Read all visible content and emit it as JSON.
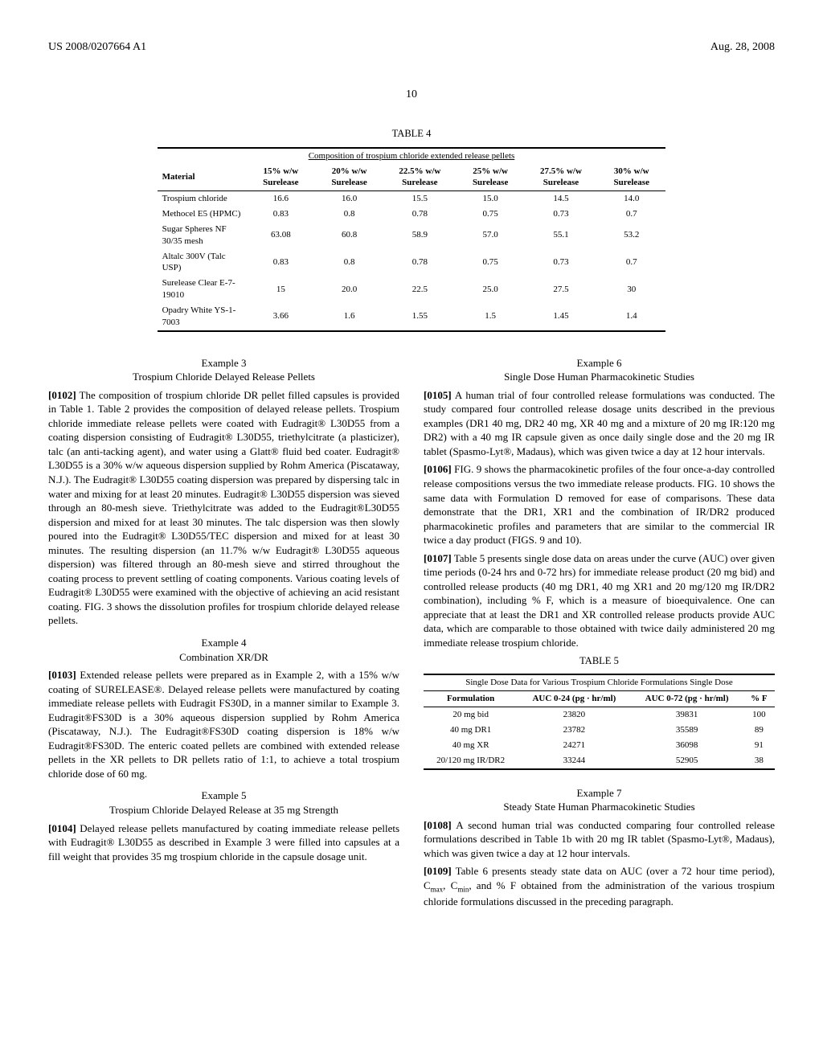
{
  "header": {
    "left": "US 2008/0207664 A1",
    "right": "Aug. 28, 2008"
  },
  "page_number": "10",
  "table4": {
    "caption": "TABLE 4",
    "subcaption": "Composition of trospium chloride extended release pellets",
    "columns": [
      "Material",
      "15% w/w Surelease",
      "20% w/w Surelease",
      "22.5% w/w Surelease",
      "25% w/w Surelease",
      "27.5% w/w Surelease",
      "30% w/w Surelease"
    ],
    "rows": [
      [
        "Trospium chloride",
        "16.6",
        "16.0",
        "15.5",
        "15.0",
        "14.5",
        "14.0"
      ],
      [
        "Methocel E5 (HPMC)",
        "0.83",
        "0.8",
        "0.78",
        "0.75",
        "0.73",
        "0.7"
      ],
      [
        "Sugar Spheres NF 30/35 mesh",
        "63.08",
        "60.8",
        "58.9",
        "57.0",
        "55.1",
        "53.2"
      ],
      [
        "Altalc 300V (Talc USP)",
        "0.83",
        "0.8",
        "0.78",
        "0.75",
        "0.73",
        "0.7"
      ],
      [
        "Surelease Clear E-7-19010",
        "15",
        "20.0",
        "22.5",
        "25.0",
        "27.5",
        "30"
      ],
      [
        "Opadry White YS-1-7003",
        "3.66",
        "1.6",
        "1.55",
        "1.5",
        "1.45",
        "1.4"
      ]
    ]
  },
  "example3": {
    "label": "Example 3",
    "title": "Trospium Chloride Delayed Release Pellets",
    "para_num": "[0102]",
    "text": "The composition of trospium chloride DR pellet filled capsules is provided in Table 1. Table 2 provides the composition of delayed release pellets. Trospium chloride immediate release pellets were coated with Eudragit® L30D55 from a coating dispersion consisting of Eudragit® L30D55, triethylcitrate (a plasticizer), talc (an anti-tacking agent), and water using a Glatt® fluid bed coater. Eudragit® L30D55 is a 30% w/w aqueous dispersion supplied by Rohm America (Piscataway, N.J.). The Eudragit® L30D55 coating dispersion was prepared by dispersing talc in water and mixing for at least 20 minutes. Eudragit® L30D55 dispersion was sieved through an 80-mesh sieve. Triethylcitrate was added to the Eudragit®L30D55 dispersion and mixed for at least 30 minutes. The talc dispersion was then slowly poured into the Eudragit® L30D55/TEC dispersion and mixed for at least 30 minutes. The resulting dispersion (an 11.7% w/w Eudragit® L30D55 aqueous dispersion) was filtered through an 80-mesh sieve and stirred throughout the coating process to prevent settling of coating components. Various coating levels of Eudragit® L30D55 were examined with the objective of achieving an acid resistant coating. FIG. 3 shows the dissolution profiles for trospium chloride delayed release pellets."
  },
  "example4": {
    "label": "Example 4",
    "title": "Combination XR/DR",
    "para_num": "[0103]",
    "text": "Extended release pellets were prepared as in Example 2, with a 15% w/w coating of SURELEASE®. Delayed release pellets were manufactured by coating immediate release pellets with Eudragit FS30D, in a manner similar to Example 3. Eudragit®FS30D is a 30% aqueous dispersion supplied by Rohm America (Piscataway, N.J.). The Eudragit®FS30D coating dispersion is 18% w/w Eudragit®FS30D. The enteric coated pellets are combined with extended release pellets in the XR pellets to DR pellets ratio of 1:1, to achieve a total trospium chloride dose of 60 mg."
  },
  "example5": {
    "label": "Example 5",
    "title": "Trospium Chloride Delayed Release at 35 mg Strength",
    "para_num": "[0104]",
    "text": "Delayed release pellets manufactured by coating immediate release pellets with Eudragit® L30D55 as described in Example 3 were filled into capsules at a fill weight that provides 35 mg trospium chloride in the capsule dosage unit."
  },
  "example6": {
    "label": "Example 6",
    "title": "Single Dose Human Pharmacokinetic Studies",
    "p1_num": "[0105]",
    "p1": "A human trial of four controlled release formulations was conducted. The study compared four controlled release dosage units described in the previous examples (DR1 40 mg, DR2 40 mg, XR 40 mg and a mixture of 20 mg IR:120 mg DR2) with a 40 mg IR capsule given as once daily single dose and the 20 mg IR tablet (Spasmo-Lyt®, Madaus), which was given twice a day at 12 hour intervals.",
    "p2_num": "[0106]",
    "p2": "FIG. 9 shows the pharmacokinetic profiles of the four once-a-day controlled release compositions versus the two immediate release products. FIG. 10 shows the same data with Formulation D removed for ease of comparisons. These data demonstrate that the DR1, XR1 and the combination of IR/DR2 produced pharmacokinetic profiles and parameters that are similar to the commercial IR twice a day product (FIGS. 9 and 10).",
    "p3_num": "[0107]",
    "p3": "Table 5 presents single dose data on areas under the curve (AUC) over given time periods (0-24 hrs and 0-72 hrs) for immediate release product (20 mg bid) and controlled release products (40 mg DR1, 40 mg XR1 and 20 mg/120 mg IR/DR2 combination), including % F, which is a measure of bioequivalence. One can appreciate that at least the DR1 and XR controlled release products provide AUC data, which are comparable to those obtained with twice daily administered 20 mg immediate release trospium chloride."
  },
  "table5": {
    "caption": "TABLE 5",
    "subcaption": "Single Dose Data for Various Trospium Chloride Formulations Single Dose",
    "columns": [
      "Formulation",
      "AUC 0-24 (pg · hr/ml)",
      "AUC 0-72 (pg · hr/ml)",
      "% F"
    ],
    "rows": [
      [
        "20 mg bid",
        "23820",
        "39831",
        "100"
      ],
      [
        "40 mg DR1",
        "23782",
        "35589",
        "89"
      ],
      [
        "40 mg XR",
        "24271",
        "36098",
        "91"
      ],
      [
        "20/120 mg IR/DR2",
        "33244",
        "52905",
        "38"
      ]
    ]
  },
  "example7": {
    "label": "Example 7",
    "title": "Steady State Human Pharmacokinetic Studies",
    "p1_num": "[0108]",
    "p1": "A second human trial was conducted comparing four controlled release formulations described in Table 1b with 20 mg IR tablet (Spasmo-Lyt®, Madaus), which was given twice a day at 12 hour intervals.",
    "p2_num": "[0109]",
    "p2_pre": "Table 6 presents steady state data on AUC (over a 72 hour time period), C",
    "p2_sub1": "max",
    "p2_mid": ", C",
    "p2_sub2": "min",
    "p2_post": ", and % F obtained from the administration of the various trospium chloride formulations discussed in the preceding paragraph."
  }
}
